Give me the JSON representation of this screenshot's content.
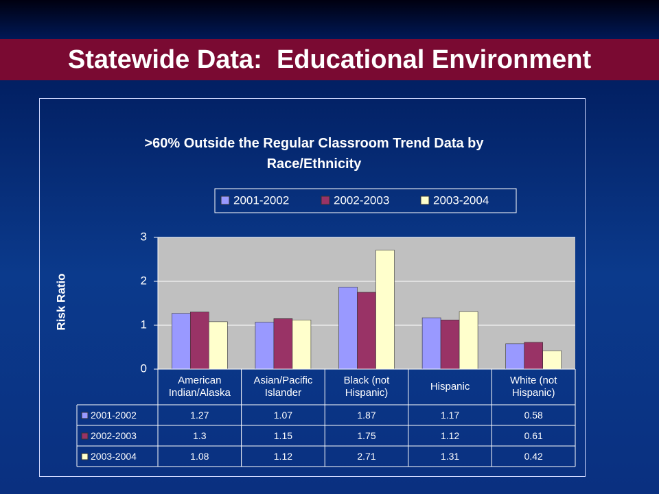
{
  "slide_title": "Statewide Data:  Educational Environment",
  "chart_data": {
    "type": "bar",
    "title": ">60% Outside the Regular Classroom Trend Data by Race/Ethnicity",
    "y_label": "Risk Ratio",
    "categories": [
      "American Indian/Alaska",
      "Asian/Pacific Islander",
      "Black (not Hispanic)",
      "Hispanic",
      "White (not Hispanic)"
    ],
    "series": [
      {
        "name": "2001-2002",
        "color": "#9999ff",
        "values": [
          1.27,
          1.07,
          1.87,
          1.17,
          0.58
        ]
      },
      {
        "name": "2002-2003",
        "color": "#993366",
        "values": [
          1.3,
          1.15,
          1.75,
          1.12,
          0.61
        ]
      },
      {
        "name": "2003-2004",
        "color": "#ffffcc",
        "values": [
          1.08,
          1.12,
          2.71,
          1.31,
          0.42
        ]
      }
    ],
    "ylim": [
      0,
      3
    ],
    "yticks": [
      0,
      1,
      2,
      3
    ],
    "grid": true,
    "legend": "top"
  }
}
